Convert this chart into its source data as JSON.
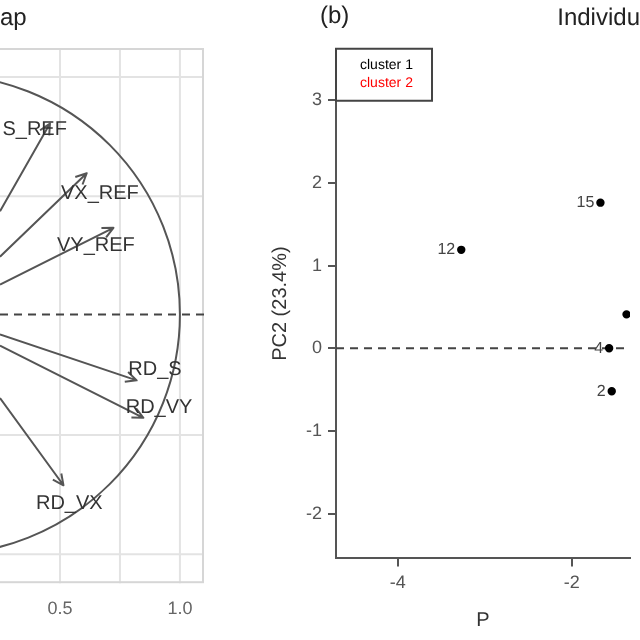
{
  "chart_data": [
    {
      "type": "other",
      "title": "ap",
      "annotations": [
        "S_REF",
        "VX_REF",
        "VY_REF",
        "RD_S",
        "RD_VY",
        "RD_VX",
        "0.5",
        "1.0"
      ]
    },
    {
      "type": "scatter",
      "title": "Individu",
      "xlabel": "P",
      "ylabel": "PC2 (23.4%)",
      "xlim": [
        -4.71,
        -1.33
      ],
      "ylim": [
        -2.54,
        3.62
      ],
      "xticks": [
        -4,
        -2
      ],
      "yticks": [
        -2,
        -1,
        0,
        1,
        2,
        3
      ],
      "grid": false,
      "legend": "top left",
      "marker": "circle",
      "ref_lines": [
        {
          "axis": "y",
          "value": 0,
          "line_style": "dashed"
        }
      ],
      "annotations": [
        "(b)",
        {
          "text": "12",
          "x": -3.27,
          "y": 1.19
        },
        {
          "text": "15",
          "x": -1.67,
          "y": 1.76
        },
        {
          "text": "4",
          "x": -1.57,
          "y": 0
        },
        {
          "text": "2",
          "x": -1.54,
          "y": -0.52
        }
      ],
      "series": [
        {
          "name": "cluster 1",
          "color": "#000000",
          "x": [
            -3.27,
            -1.67,
            -1.57,
            -1.54,
            -1.37
          ],
          "values": [
            1.19,
            1.76,
            0,
            -0.52,
            0.41
          ]
        },
        {
          "name": "cluster 2",
          "color": "#ff0000"
        }
      ]
    }
  ]
}
